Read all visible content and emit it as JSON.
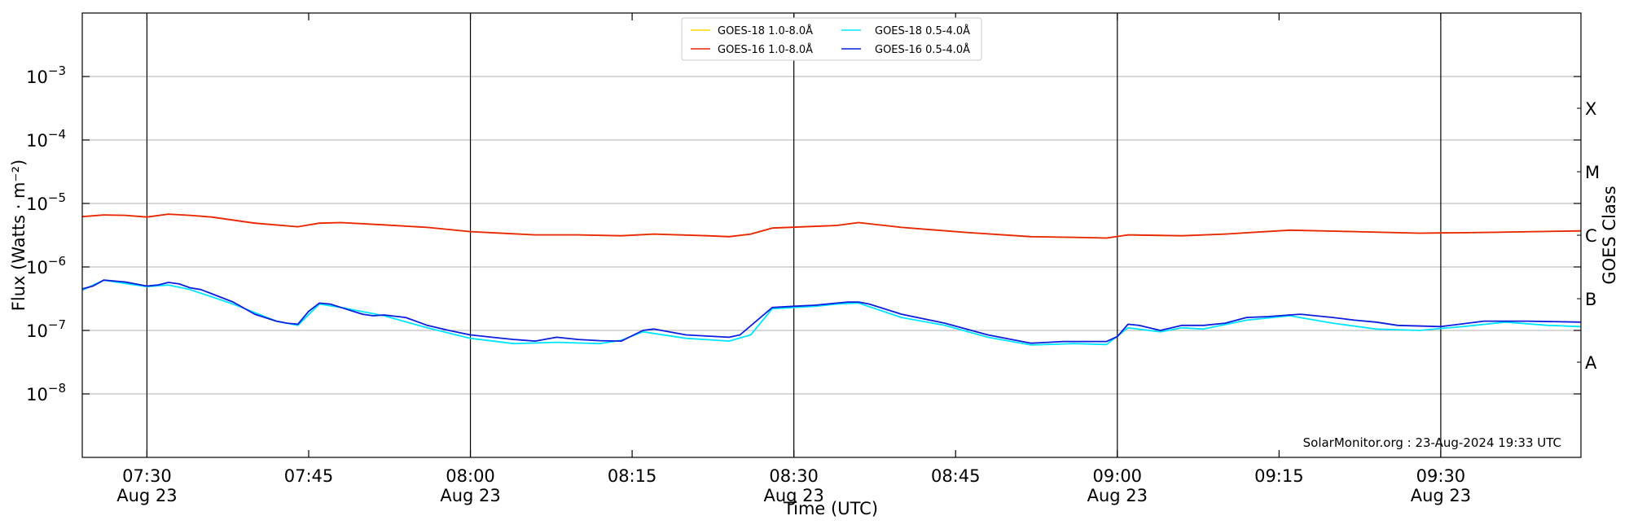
{
  "chart_data": {
    "type": "line",
    "ylabel": "Flux (Watts · m⁻²)",
    "xlabel": "Time (UTC)",
    "right_label": "GOES Class",
    "yscale": "log",
    "ylim": [
      1e-09,
      0.01
    ],
    "xlim": [
      "07:24",
      "09:43"
    ],
    "y_ticks": [
      {
        "value": 1e-08,
        "base": "10",
        "exp": "−8"
      },
      {
        "value": 1e-07,
        "base": "10",
        "exp": "−7"
      },
      {
        "value": 1e-06,
        "base": "10",
        "exp": "−6"
      },
      {
        "value": 1e-05,
        "base": "10",
        "exp": "−5"
      },
      {
        "value": 0.0001,
        "base": "10",
        "exp": "−4"
      },
      {
        "value": 0.001,
        "base": "10",
        "exp": "−3"
      }
    ],
    "x_ticks": [
      {
        "time": "07:30",
        "label": "07:30",
        "sub": "Aug 23"
      },
      {
        "time": "07:45",
        "label": "07:45",
        "sub": ""
      },
      {
        "time": "08:00",
        "label": "08:00",
        "sub": "Aug 23"
      },
      {
        "time": "08:15",
        "label": "08:15",
        "sub": ""
      },
      {
        "time": "08:30",
        "label": "08:30",
        "sub": "Aug 23"
      },
      {
        "time": "08:45",
        "label": "08:45",
        "sub": ""
      },
      {
        "time": "09:00",
        "label": "09:00",
        "sub": "Aug 23"
      },
      {
        "time": "09:15",
        "label": "09:15",
        "sub": ""
      },
      {
        "time": "09:30",
        "label": "09:30",
        "sub": "Aug 23"
      }
    ],
    "vertical_lines": [
      "07:30",
      "08:00",
      "08:30",
      "09:00",
      "09:30"
    ],
    "class_labels": [
      {
        "label": "X",
        "value": 0.000316
      },
      {
        "label": "M",
        "value": 3.16e-05
      },
      {
        "label": "C",
        "value": 3.16e-06
      },
      {
        "label": "B",
        "value": 3.16e-07
      },
      {
        "label": "A",
        "value": 3.16e-08
      }
    ],
    "grid": true,
    "legend_position": "top-center",
    "credit": "SolarMonitor.org : 23-Aug-2024 19:33 UTC",
    "series": [
      {
        "name": "GOES-18 1.0-8.0Å",
        "color": "#ffd700",
        "x": [
          "07:24",
          "07:26",
          "07:28",
          "07:30",
          "07:32",
          "07:34",
          "07:36",
          "07:40",
          "07:44",
          "07:46",
          "07:48",
          "07:52",
          "07:56",
          "08:00",
          "08:06",
          "08:10",
          "08:14",
          "08:17",
          "08:22",
          "08:24",
          "08:26",
          "08:28",
          "08:34",
          "08:36",
          "08:40",
          "08:46",
          "08:52",
          "08:57",
          "08:59",
          "09:01",
          "09:06",
          "09:10",
          "09:16",
          "09:22",
          "09:28",
          "09:34",
          "09:43"
        ],
        "values": [
          6.2e-06,
          6.6e-06,
          6.5e-06,
          6.1e-06,
          6.8e-06,
          6.5e-06,
          6.1e-06,
          4.9e-06,
          4.3e-06,
          4.9e-06,
          5e-06,
          4.6e-06,
          4.2e-06,
          3.6e-06,
          3.2e-06,
          3.2e-06,
          3.1e-06,
          3.3e-06,
          3.1e-06,
          3e-06,
          3.3e-06,
          4.1e-06,
          4.5e-06,
          5e-06,
          4.2e-06,
          3.5e-06,
          3e-06,
          2.9e-06,
          2.85e-06,
          3.2e-06,
          3.1e-06,
          3.3e-06,
          3.8e-06,
          3.6e-06,
          3.4e-06,
          3.5e-06,
          3.7e-06
        ]
      },
      {
        "name": "GOES-18 0.5-4.0Å",
        "color": "#00e5ff",
        "x": [
          "07:24",
          "07:26",
          "07:28",
          "07:30",
          "07:32",
          "07:34",
          "07:38",
          "07:42",
          "07:44",
          "07:46",
          "07:48",
          "07:52",
          "07:56",
          "08:00",
          "08:04",
          "08:08",
          "08:12",
          "08:14",
          "08:16",
          "08:20",
          "08:24",
          "08:26",
          "08:28",
          "08:32",
          "08:34",
          "08:36",
          "08:40",
          "08:44",
          "08:48",
          "08:52",
          "08:56",
          "08:59",
          "09:01",
          "09:04",
          "09:06",
          "09:08",
          "09:12",
          "09:16",
          "09:20",
          "09:24",
          "09:28",
          "09:32",
          "09:36",
          "09:40",
          "09:43"
        ],
        "values": [
          4.3e-07,
          6.2e-07,
          5.5e-07,
          4.9e-07,
          5.2e-07,
          4.4e-07,
          2.6e-07,
          1.4e-07,
          1.2e-07,
          2.6e-07,
          2.3e-07,
          1.7e-07,
          1.1e-07,
          7.5e-08,
          6.2e-08,
          6.5e-08,
          6.2e-08,
          7e-08,
          9.5e-08,
          7.5e-08,
          6.8e-08,
          8.5e-08,
          2.2e-07,
          2.4e-07,
          2.6e-07,
          2.7e-07,
          1.6e-07,
          1.2e-07,
          7.8e-08,
          5.9e-08,
          6.2e-08,
          6e-08,
          1.1e-07,
          9.5e-08,
          1.1e-07,
          1.05e-07,
          1.45e-07,
          1.7e-07,
          1.3e-07,
          1.05e-07,
          1e-07,
          1.15e-07,
          1.35e-07,
          1.2e-07,
          1.15e-07
        ]
      },
      {
        "name": "GOES-16 1.0-8.0Å",
        "color": "#e8250c",
        "x": [
          "07:24",
          "07:26",
          "07:28",
          "07:30",
          "07:32",
          "07:34",
          "07:36",
          "07:40",
          "07:44",
          "07:46",
          "07:48",
          "07:52",
          "07:56",
          "08:00",
          "08:06",
          "08:10",
          "08:14",
          "08:17",
          "08:22",
          "08:24",
          "08:26",
          "08:28",
          "08:34",
          "08:36",
          "08:40",
          "08:46",
          "08:52",
          "08:57",
          "08:59",
          "09:01",
          "09:06",
          "09:10",
          "09:16",
          "09:22",
          "09:28",
          "09:34",
          "09:43"
        ],
        "values": [
          6.2e-06,
          6.6e-06,
          6.5e-06,
          6.1e-06,
          6.8e-06,
          6.5e-06,
          6.1e-06,
          4.9e-06,
          4.3e-06,
          4.9e-06,
          5e-06,
          4.6e-06,
          4.2e-06,
          3.6e-06,
          3.2e-06,
          3.2e-06,
          3.1e-06,
          3.3e-06,
          3.1e-06,
          3e-06,
          3.3e-06,
          4.1e-06,
          4.5e-06,
          5e-06,
          4.2e-06,
          3.5e-06,
          3e-06,
          2.9e-06,
          2.85e-06,
          3.2e-06,
          3.1e-06,
          3.3e-06,
          3.8e-06,
          3.6e-06,
          3.4e-06,
          3.5e-06,
          3.7e-06
        ]
      },
      {
        "name": "GOES-16 0.5-4.0Å",
        "color": "#0b1ee0",
        "x": [
          "07:24",
          "07:25",
          "07:26",
          "07:28",
          "07:30",
          "07:31",
          "07:32",
          "07:33",
          "07:34",
          "07:35",
          "07:38",
          "07:40",
          "07:42",
          "07:43",
          "07:44",
          "07:45",
          "07:46",
          "07:47",
          "07:48",
          "07:50",
          "07:51",
          "07:52",
          "07:54",
          "07:56",
          "07:58",
          "08:00",
          "08:02",
          "08:04",
          "08:06",
          "08:08",
          "08:10",
          "08:12",
          "08:14",
          "08:16",
          "08:17",
          "08:20",
          "08:24",
          "08:25",
          "08:28",
          "08:30",
          "08:32",
          "08:34",
          "08:35",
          "08:36",
          "08:37",
          "08:40",
          "08:44",
          "08:48",
          "08:52",
          "08:55",
          "08:59",
          "09:00",
          "09:01",
          "09:02",
          "09:04",
          "09:06",
          "09:08",
          "09:10",
          "09:12",
          "09:14",
          "09:16",
          "09:17",
          "09:20",
          "09:22",
          "09:24",
          "09:26",
          "09:30",
          "09:34",
          "09:38",
          "09:43"
        ],
        "values": [
          4.5e-07,
          5e-07,
          6.2e-07,
          5.8e-07,
          5e-07,
          5.2e-07,
          5.7e-07,
          5.4e-07,
          4.7e-07,
          4.4e-07,
          2.8e-07,
          1.8e-07,
          1.4e-07,
          1.3e-07,
          1.25e-07,
          2e-07,
          2.7e-07,
          2.6e-07,
          2.3e-07,
          1.8e-07,
          1.7e-07,
          1.75e-07,
          1.6e-07,
          1.2e-07,
          1e-07,
          8.5e-08,
          7.8e-08,
          7.2e-08,
          6.8e-08,
          7.8e-08,
          7.2e-08,
          6.9e-08,
          6.8e-08,
          1e-07,
          1.05e-07,
          8.5e-08,
          7.8e-08,
          8.5e-08,
          2.3e-07,
          2.4e-07,
          2.5e-07,
          2.7e-07,
          2.8e-07,
          2.8e-07,
          2.6e-07,
          1.8e-07,
          1.3e-07,
          8.5e-08,
          6.3e-08,
          6.7e-08,
          6.7e-08,
          8e-08,
          1.25e-07,
          1.2e-07,
          1e-07,
          1.2e-07,
          1.2e-07,
          1.3e-07,
          1.6e-07,
          1.65e-07,
          1.75e-07,
          1.8e-07,
          1.6e-07,
          1.45e-07,
          1.35e-07,
          1.2e-07,
          1.15e-07,
          1.4e-07,
          1.4e-07,
          1.35e-07
        ]
      }
    ]
  }
}
